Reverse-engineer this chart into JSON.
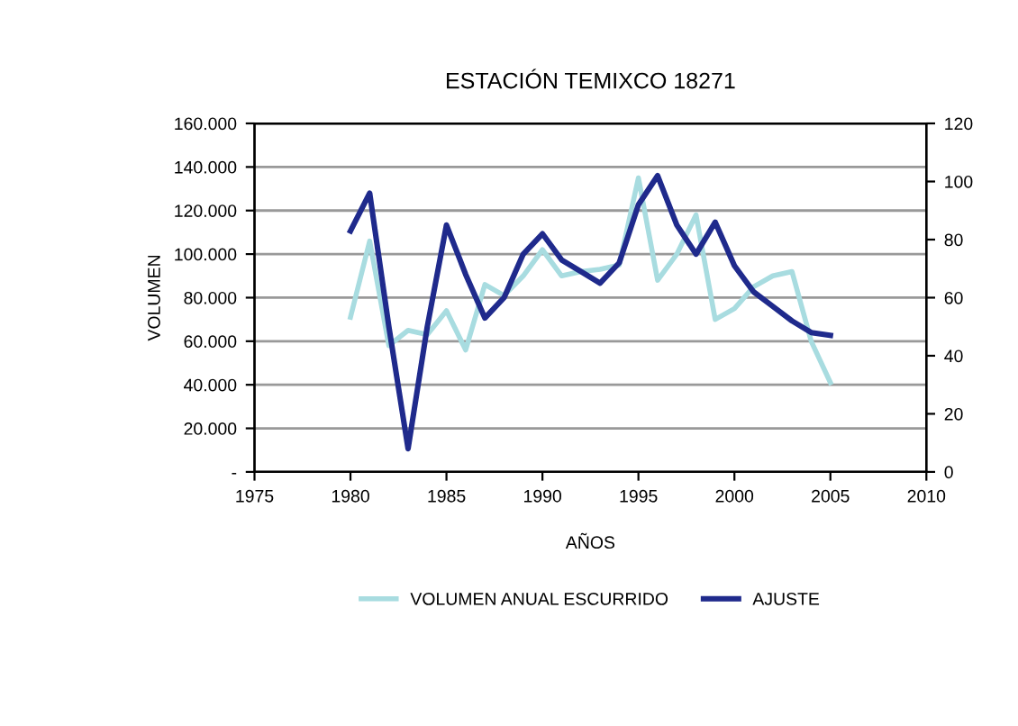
{
  "chart_data": {
    "type": "line",
    "title": "ESTACIÓN TEMIXCO 18271",
    "xlabel": "AÑOS",
    "ylabel": "VOLUMEN",
    "legend": "bottom",
    "grid": "y",
    "marker": "none",
    "line_style": "solid",
    "x": [
      1980,
      1981,
      1982,
      1983,
      1984,
      1985,
      1986,
      1987,
      1988,
      1989,
      1990,
      1991,
      1992,
      1993,
      1994,
      1995,
      1996,
      1997,
      1998,
      1999,
      2000,
      2001,
      2002,
      2003,
      2004,
      2005
    ],
    "xlim": [
      1975,
      2010
    ],
    "xticks": [
      1975,
      1980,
      1985,
      1990,
      1995,
      2000,
      2005,
      2010
    ],
    "ylim": [
      0,
      160000
    ],
    "yticks": [
      {
        "value": 0,
        "label": "-"
      },
      {
        "value": 20000,
        "label": "20.000"
      },
      {
        "value": 40000,
        "label": "40.000"
      },
      {
        "value": 60000,
        "label": "60.000"
      },
      {
        "value": 80000,
        "label": "80.000"
      },
      {
        "value": 100000,
        "label": "100.000"
      },
      {
        "value": 120000,
        "label": "120.000"
      },
      {
        "value": 140000,
        "label": "140.000"
      },
      {
        "value": 160000,
        "label": "160.000"
      }
    ],
    "y2lim": [
      0,
      120
    ],
    "y2ticks": [
      0,
      20,
      40,
      60,
      80,
      100,
      120
    ],
    "series": [
      {
        "name": "VOLUMEN ANUAL ESCURRIDO",
        "color": "#a8dce0",
        "values": [
          71000,
          106000,
          58000,
          65000,
          63000,
          74000,
          56000,
          86000,
          81000,
          90000,
          102000,
          90000,
          92000,
          93000,
          95000,
          135000,
          88000,
          100000,
          118000,
          70000,
          75000,
          85000,
          90000,
          92000,
          60000,
          41000
        ]
      },
      {
        "name": "AJUSTE",
        "color": "#1f2a8c",
        "axis": "y2",
        "values": [
          83,
          96,
          50,
          8,
          50,
          85,
          68,
          53,
          60,
          75,
          82,
          73,
          69,
          65,
          72,
          92,
          102,
          85,
          75,
          86,
          71,
          62,
          57,
          52,
          48,
          47
        ]
      }
    ]
  }
}
